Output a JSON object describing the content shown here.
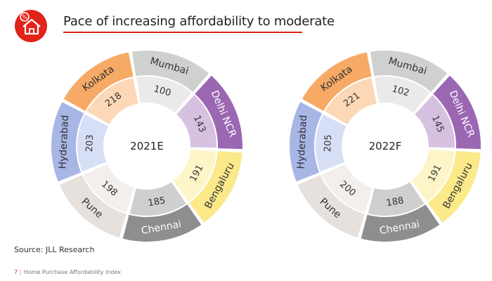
{
  "title": "Pace of increasing affordability to moderate",
  "source": "Source: JLL Research",
  "footer": {
    "page": "7",
    "separator": "|",
    "text": "Home Purchase Affordability Index"
  },
  "colors": {
    "accent": "#e2231a"
  },
  "chart_data": [
    {
      "type": "donut",
      "title": "2021E",
      "categories": [
        "Mumbai",
        "Delhi NCR",
        "Bengaluru",
        "Chennai",
        "Pune",
        "Hyderabad",
        "Kolkata"
      ],
      "values": [
        100,
        143,
        191,
        185,
        198,
        203,
        218
      ],
      "outer_colors": [
        "#d0d0d0",
        "#9b67b3",
        "#fbe98a",
        "#8e8e8e",
        "#e6e1dc",
        "#a8b6e6",
        "#f6aa66"
      ],
      "inner_colors": [
        "#eaeaea",
        "#d6c2e0",
        "#fdf5c8",
        "#cfcfcf",
        "#f2efec",
        "#d7dff6",
        "#fcd8b6"
      ]
    },
    {
      "type": "donut",
      "title": "2022F",
      "categories": [
        "Mumbai",
        "Delhi NCR",
        "Bengaluru",
        "Chennai",
        "Pune",
        "Hyderabad",
        "Kolkata"
      ],
      "values": [
        102,
        145,
        191,
        188,
        200,
        205,
        221
      ],
      "outer_colors": [
        "#d0d0d0",
        "#9b67b3",
        "#fbe98a",
        "#8e8e8e",
        "#e6e1dc",
        "#a8b6e6",
        "#f6aa66"
      ],
      "inner_colors": [
        "#eaeaea",
        "#d6c2e0",
        "#fdf5c8",
        "#cfcfcf",
        "#f2efec",
        "#d7dff6",
        "#fcd8b6"
      ]
    }
  ]
}
